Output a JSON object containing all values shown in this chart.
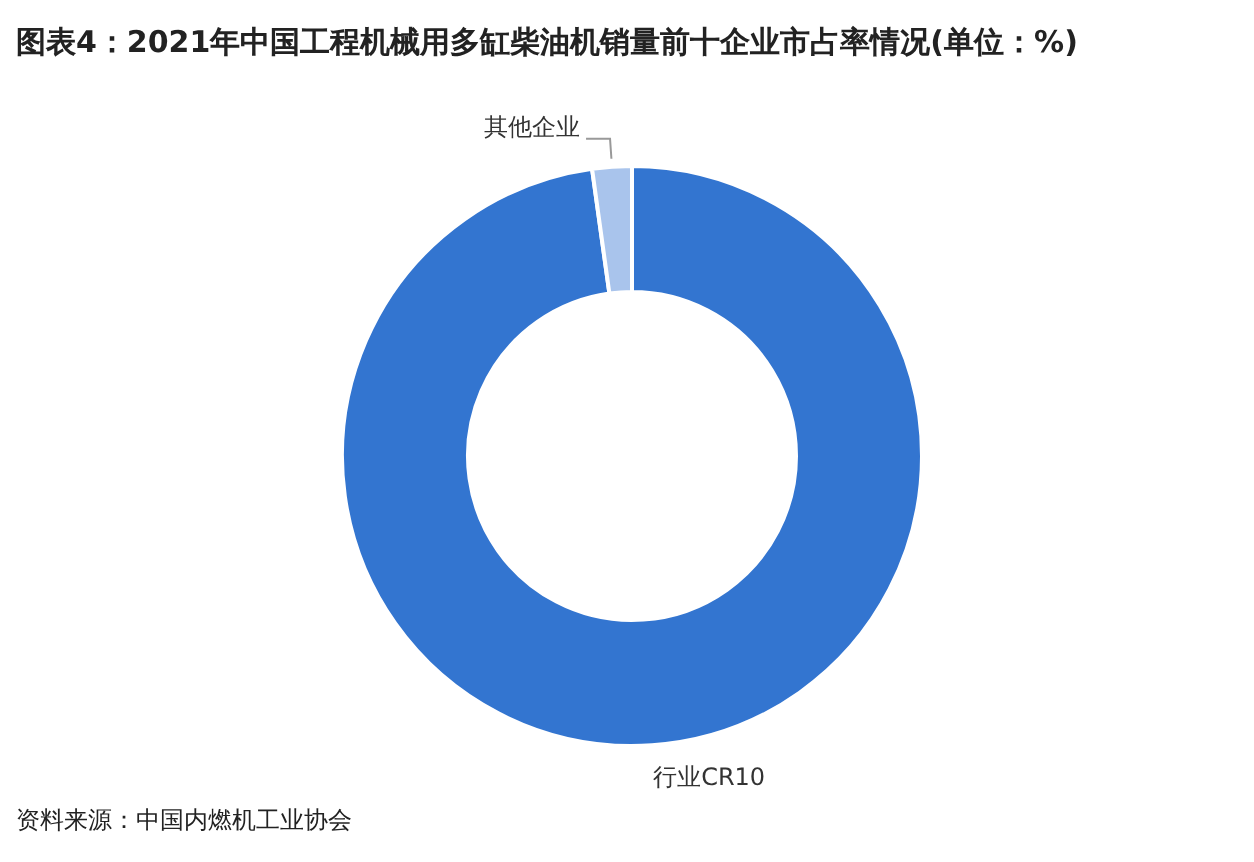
{
  "chart_data": {
    "type": "donut",
    "title": "图表4：2021年中国工程机械用多缸柴油机销量前十企业市占率情况(单位：%)",
    "categories": [
      "行业CR10",
      "其他企业"
    ],
    "values": [
      97.8,
      2.2
    ],
    "colors": [
      "#3375d0",
      "#a9c4ec"
    ],
    "annotations": [
      "资料来源：中国内燃机工业协会"
    ]
  }
}
